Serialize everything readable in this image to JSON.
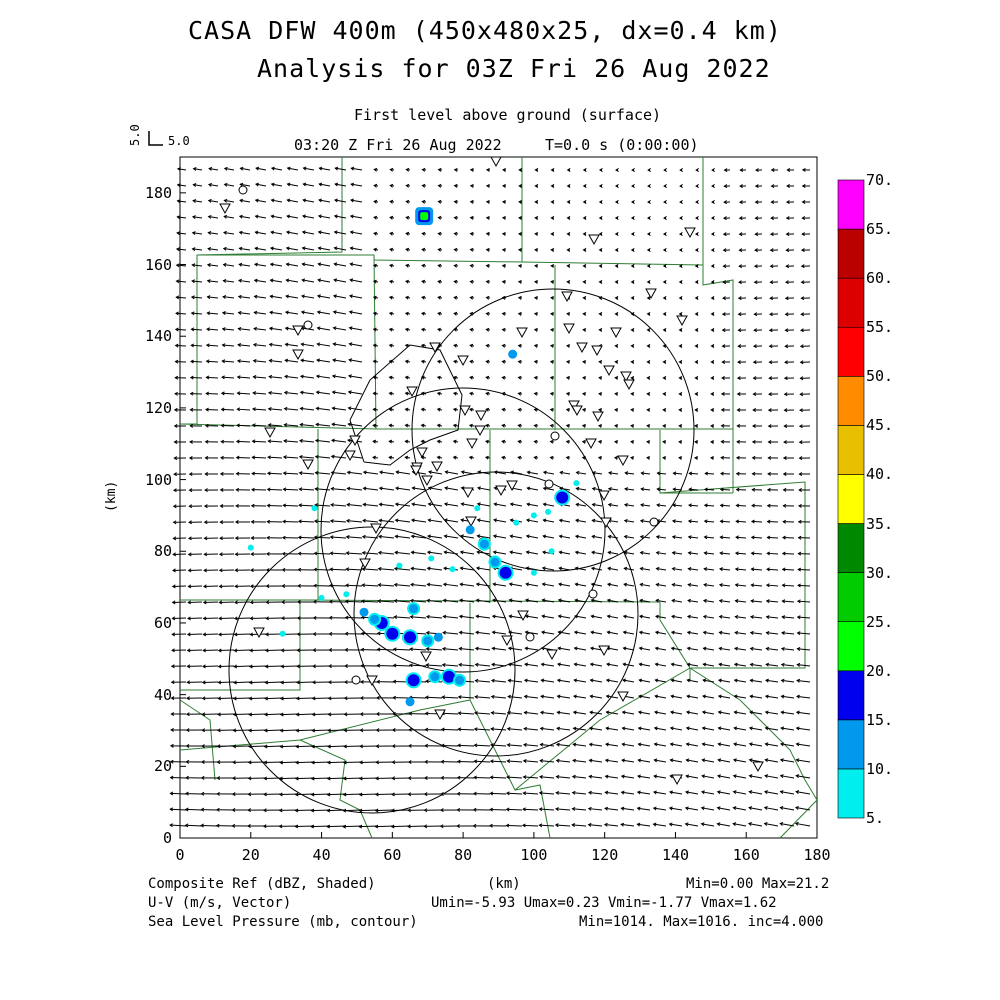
{
  "header": {
    "title_line1": "CASA DFW 400m (450x480x25, dx=0.4 km)",
    "title_line2": "Analysis for 03Z Fri 26 Aug 2022",
    "level": "First level above ground (surface)",
    "valid_time": "03:20 Z Fri 26 Aug 2022",
    "forecast_time": "T=0.0 s (0:00:00)",
    "vector_key_vertical": "5.0",
    "vector_key_horizontal": "5.0"
  },
  "footer": {
    "composite_ref_label": "Composite Ref (dBZ, Shaded)",
    "composite_ref_stats": "Min=0.00 Max=21.2",
    "uv_label": "U-V (m/s, Vector)",
    "uv_stats": "Umin=-5.93 Umax=0.23 Vmin=-1.77 Vmax=1.62",
    "slp_label": "Sea Level Pressure (mb, contour)",
    "slp_stats": "Min=1014. Max=1016. inc=4.000",
    "x_unit": "(km)"
  },
  "chart_data": {
    "type": "heatmap",
    "xlabel": "(km)",
    "ylabel": "(km)",
    "xlim": [
      0,
      180
    ],
    "ylim": [
      0,
      190
    ],
    "x_ticks": [
      0,
      20,
      40,
      60,
      80,
      100,
      120,
      140,
      160,
      180
    ],
    "y_ticks": [
      0,
      20,
      40,
      60,
      80,
      100,
      120,
      140,
      160,
      180
    ],
    "colorbar": {
      "labels": [
        "5.",
        "10.",
        "15.",
        "20.",
        "25.",
        "30.",
        "35.",
        "40.",
        "45.",
        "50.",
        "55.",
        "60.",
        "65.",
        "70."
      ],
      "colors": [
        "#00eeee",
        "#0099ee",
        "#0000ee",
        "#00ff00",
        "#00cc00",
        "#008800",
        "#ffff00",
        "#e8c000",
        "#ff8c00",
        "#ff0000",
        "#dd0000",
        "#bb0000",
        "#ff00ff"
      ]
    },
    "reflectivity_echoes": [
      {
        "x": 69,
        "y": 173.5,
        "dbz": 20
      },
      {
        "x": 57,
        "y": 60,
        "dbz": 15
      },
      {
        "x": 60,
        "y": 57,
        "dbz": 15
      },
      {
        "x": 65,
        "y": 56,
        "dbz": 15
      },
      {
        "x": 70,
        "y": 55,
        "dbz": 12
      },
      {
        "x": 66,
        "y": 64,
        "dbz": 12
      },
      {
        "x": 73,
        "y": 56,
        "dbz": 10
      },
      {
        "x": 52,
        "y": 63,
        "dbz": 10
      },
      {
        "x": 55,
        "y": 61,
        "dbz": 12
      },
      {
        "x": 66,
        "y": 44,
        "dbz": 15
      },
      {
        "x": 72,
        "y": 45,
        "dbz": 12
      },
      {
        "x": 76,
        "y": 45,
        "dbz": 15
      },
      {
        "x": 79,
        "y": 44,
        "dbz": 12
      },
      {
        "x": 65,
        "y": 38,
        "dbz": 10
      },
      {
        "x": 82,
        "y": 86,
        "dbz": 10
      },
      {
        "x": 86,
        "y": 82,
        "dbz": 12
      },
      {
        "x": 89,
        "y": 77,
        "dbz": 12
      },
      {
        "x": 92,
        "y": 74,
        "dbz": 15
      },
      {
        "x": 84,
        "y": 92,
        "dbz": 8
      },
      {
        "x": 95,
        "y": 88,
        "dbz": 8
      },
      {
        "x": 100,
        "y": 90,
        "dbz": 8
      },
      {
        "x": 104,
        "y": 91,
        "dbz": 8
      },
      {
        "x": 108,
        "y": 95,
        "dbz": 15
      },
      {
        "x": 94,
        "y": 135,
        "dbz": 10
      },
      {
        "x": 38,
        "y": 92,
        "dbz": 8
      },
      {
        "x": 20,
        "y": 81,
        "dbz": 6
      },
      {
        "x": 77,
        "y": 75,
        "dbz": 8
      },
      {
        "x": 71,
        "y": 78,
        "dbz": 6
      },
      {
        "x": 62,
        "y": 76,
        "dbz": 6
      },
      {
        "x": 112,
        "y": 99,
        "dbz": 8
      },
      {
        "x": 105,
        "y": 80,
        "dbz": 8
      },
      {
        "x": 100,
        "y": 74,
        "dbz": 8
      },
      {
        "x": 40,
        "y": 67,
        "dbz": 6
      },
      {
        "x": 47,
        "y": 68,
        "dbz": 6
      },
      {
        "x": 29,
        "y": 57,
        "dbz": 6
      }
    ]
  },
  "colors": {
    "county_lines": "#2e7d32",
    "contours": "#000000",
    "vectors": "#000000"
  }
}
